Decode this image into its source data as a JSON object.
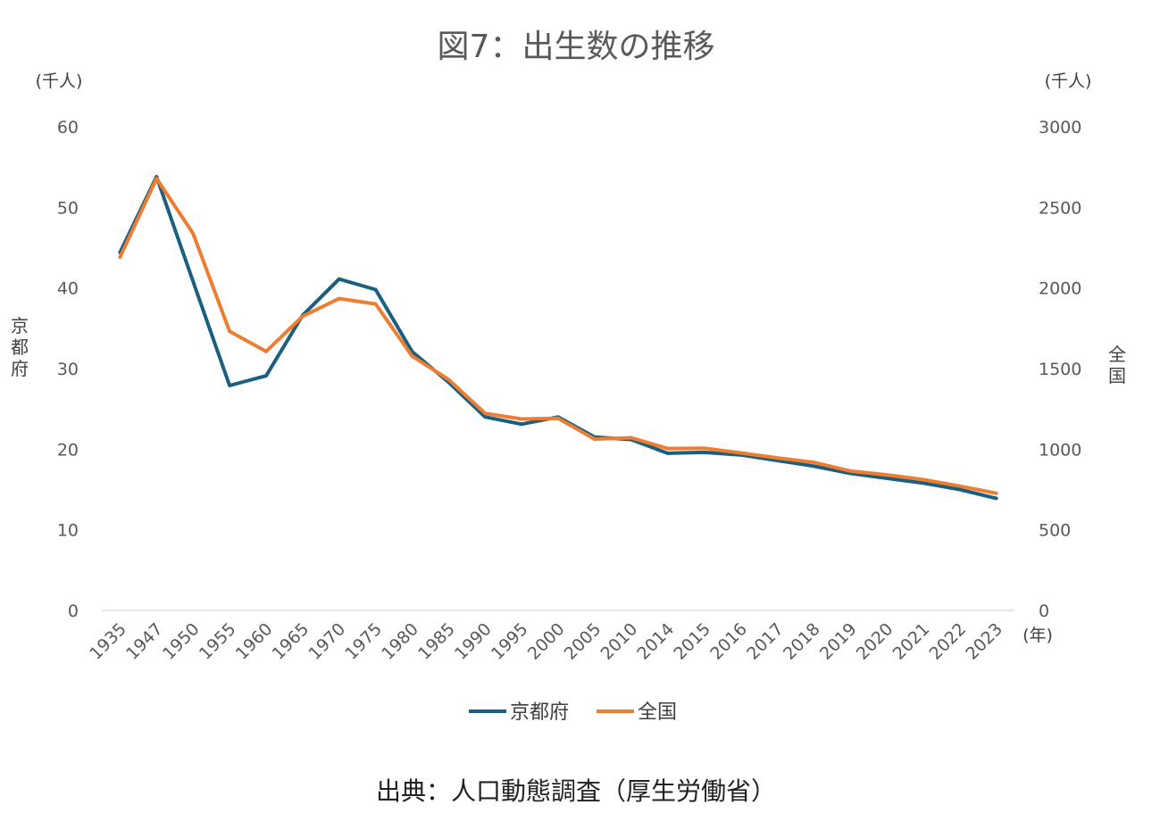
{
  "chart_data": {
    "type": "line",
    "title": "図7：出生数の推移",
    "source": "出典：人口動態調査（厚生労働省）",
    "left_unit": "(千人)",
    "right_unit": "(千人)",
    "x_unit": "(年)",
    "left_axis_label": "京都府",
    "right_axis_label": "全国",
    "categories": [
      "1935",
      "1947",
      "1950",
      "1955",
      "1960",
      "1965",
      "1970",
      "1975",
      "1980",
      "1985",
      "1990",
      "1995",
      "2000",
      "2005",
      "2010",
      "2014",
      "2015",
      "2016",
      "2017",
      "2018",
      "2019",
      "2020",
      "2021",
      "2022",
      "2023"
    ],
    "y_left_ticks": [
      "0",
      "10",
      "20",
      "30",
      "40",
      "50",
      "60"
    ],
    "y_right_ticks": [
      "0",
      "500",
      "1000",
      "1500",
      "2000",
      "2500",
      "3000"
    ],
    "ylim_left": [
      0,
      60
    ],
    "ylim_right": [
      0,
      3000
    ],
    "grid": false,
    "legend_position": "bottom",
    "series": [
      {
        "name": "京都府",
        "axis": "left",
        "color": "#1a5e80",
        "values": [
          44.4,
          53.8,
          40.8,
          27.9,
          29.1,
          36.6,
          41.1,
          39.8,
          32.1,
          28.3,
          24.0,
          23.1,
          24.0,
          21.5,
          21.2,
          19.5,
          19.6,
          19.3,
          18.6,
          17.9,
          17.0,
          16.4,
          15.8,
          15.0,
          13.9
        ]
      },
      {
        "name": "全国",
        "axis": "right",
        "color": "#ed7d31",
        "values": [
          2191,
          2679,
          2338,
          1731,
          1606,
          1824,
          1934,
          1901,
          1577,
          1432,
          1222,
          1187,
          1191,
          1063,
          1071,
          1004,
          1006,
          977,
          946,
          918,
          865,
          841,
          812,
          771,
          727
        ]
      }
    ]
  }
}
